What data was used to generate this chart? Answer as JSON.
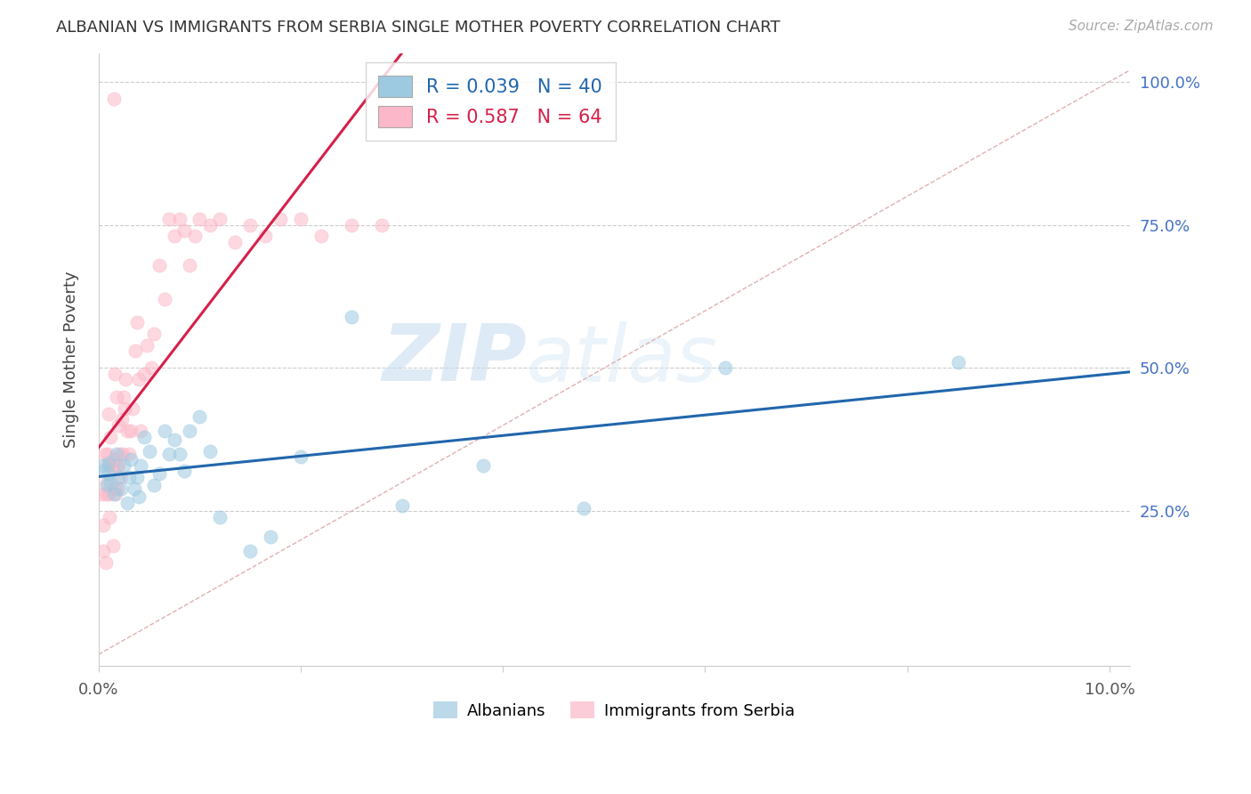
{
  "title": "ALBANIAN VS IMMIGRANTS FROM SERBIA SINGLE MOTHER POVERTY CORRELATION CHART",
  "source": "Source: ZipAtlas.com",
  "ylabel": "Single Mother Poverty",
  "xlim": [
    0.0,
    0.102
  ],
  "ylim": [
    -0.02,
    1.05
  ],
  "x_tick_positions": [
    0.0,
    0.02,
    0.04,
    0.06,
    0.08,
    0.1
  ],
  "x_tick_labels": [
    "0.0%",
    "",
    "",
    "",
    "",
    "10.0%"
  ],
  "y_tick_positions": [
    0.0,
    0.25,
    0.5,
    0.75,
    1.0
  ],
  "y_tick_labels_right": [
    "",
    "25.0%",
    "50.0%",
    "75.0%",
    "100.0%"
  ],
  "legend1_r": "R = 0.039",
  "legend1_n": "N = 40",
  "legend2_r": "R = 0.587",
  "legend2_n": "N = 64",
  "legend_series1": "Albanians",
  "legend_series2": "Immigrants from Serbia",
  "color_blue": "#9ecae1",
  "color_pink": "#fcb8c8",
  "line_color_blue": "#2166ac",
  "line_color_pink": "#d6204a",
  "diagonal_color": "#e0b0b0",
  "watermark_zip": "ZIP",
  "watermark_atlas": "atlas",
  "albanians_x": [
    0.0005,
    0.0005,
    0.0008,
    0.001,
    0.001,
    0.0012,
    0.0015,
    0.0018,
    0.002,
    0.0022,
    0.0025,
    0.0028,
    0.003,
    0.0032,
    0.0035,
    0.0038,
    0.004,
    0.0042,
    0.0045,
    0.005,
    0.0055,
    0.006,
    0.0065,
    0.007,
    0.0075,
    0.008,
    0.0085,
    0.009,
    0.01,
    0.011,
    0.012,
    0.015,
    0.017,
    0.02,
    0.025,
    0.03,
    0.038,
    0.048,
    0.062,
    0.085
  ],
  "albanians_y": [
    0.32,
    0.33,
    0.295,
    0.315,
    0.335,
    0.3,
    0.28,
    0.35,
    0.31,
    0.29,
    0.33,
    0.265,
    0.31,
    0.34,
    0.29,
    0.31,
    0.275,
    0.33,
    0.38,
    0.355,
    0.295,
    0.315,
    0.39,
    0.35,
    0.375,
    0.35,
    0.32,
    0.39,
    0.415,
    0.355,
    0.24,
    0.18,
    0.205,
    0.345,
    0.59,
    0.26,
    0.33,
    0.255,
    0.5,
    0.51
  ],
  "serbia_x": [
    0.0003,
    0.0005,
    0.0005,
    0.0006,
    0.0007,
    0.0007,
    0.0008,
    0.0009,
    0.001,
    0.001,
    0.001,
    0.0011,
    0.0012,
    0.0012,
    0.0013,
    0.0014,
    0.0015,
    0.0015,
    0.0016,
    0.0017,
    0.0018,
    0.0018,
    0.0019,
    0.002,
    0.002,
    0.0021,
    0.0022,
    0.0023,
    0.0024,
    0.0025,
    0.0026,
    0.0027,
    0.0028,
    0.003,
    0.0032,
    0.0034,
    0.0036,
    0.0038,
    0.004,
    0.0042,
    0.0045,
    0.0048,
    0.0052,
    0.0055,
    0.006,
    0.0065,
    0.007,
    0.0075,
    0.008,
    0.0085,
    0.009,
    0.0095,
    0.01,
    0.011,
    0.012,
    0.0135,
    0.015,
    0.0165,
    0.018,
    0.02,
    0.022,
    0.025,
    0.028,
    0.0015
  ],
  "serbia_y": [
    0.28,
    0.18,
    0.225,
    0.35,
    0.28,
    0.16,
    0.3,
    0.35,
    0.33,
    0.42,
    0.28,
    0.24,
    0.33,
    0.38,
    0.33,
    0.19,
    0.29,
    0.34,
    0.49,
    0.28,
    0.33,
    0.45,
    0.29,
    0.33,
    0.4,
    0.35,
    0.31,
    0.41,
    0.35,
    0.45,
    0.43,
    0.48,
    0.39,
    0.35,
    0.39,
    0.43,
    0.53,
    0.58,
    0.48,
    0.39,
    0.49,
    0.54,
    0.5,
    0.56,
    0.68,
    0.62,
    0.76,
    0.73,
    0.76,
    0.74,
    0.68,
    0.73,
    0.76,
    0.75,
    0.76,
    0.72,
    0.75,
    0.73,
    0.76,
    0.76,
    0.73,
    0.75,
    0.75,
    0.97
  ]
}
